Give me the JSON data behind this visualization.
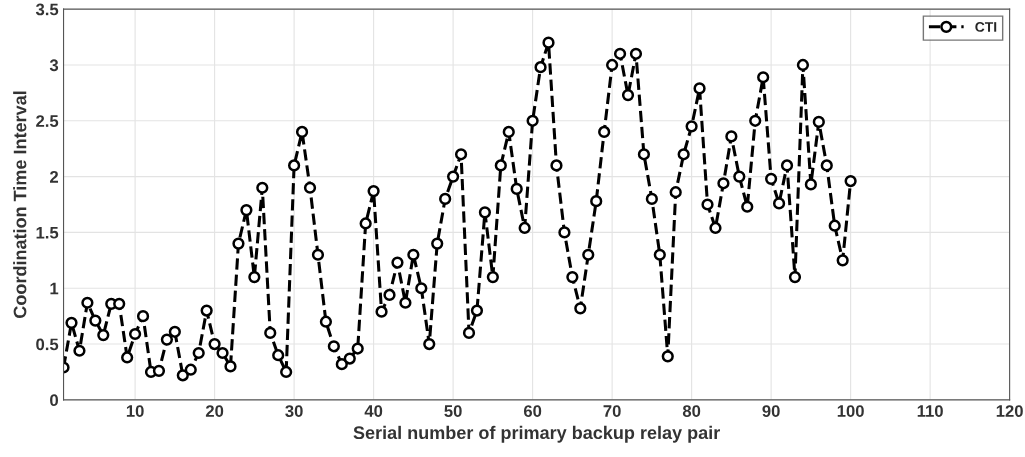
{
  "chart_data": {
    "type": "line",
    "xlabel": "Serial number of primary backup relay pair",
    "ylabel": "Coordination Time Interval",
    "x": [
      1,
      2,
      3,
      4,
      5,
      6,
      7,
      8,
      9,
      10,
      11,
      12,
      13,
      14,
      15,
      16,
      17,
      18,
      19,
      20,
      21,
      22,
      23,
      24,
      25,
      26,
      27,
      28,
      29,
      30,
      31,
      32,
      33,
      34,
      35,
      36,
      37,
      38,
      39,
      40,
      41,
      42,
      43,
      44,
      45,
      46,
      47,
      48,
      49,
      50,
      51,
      52,
      53,
      54,
      55,
      56,
      57,
      58,
      59,
      60,
      61,
      62,
      63,
      64,
      65,
      66,
      67,
      68,
      69,
      70,
      71,
      72,
      73,
      74,
      75,
      76,
      77,
      78,
      79,
      80,
      81,
      82,
      83,
      84,
      85,
      86,
      87,
      88,
      89,
      90,
      91,
      92,
      93,
      94,
      95,
      96,
      97,
      98,
      99,
      100
    ],
    "series": [
      {
        "name": "CTI",
        "color": "#000000",
        "values": [
          0.29,
          0.69,
          0.44,
          0.87,
          0.71,
          0.58,
          0.86,
          0.86,
          0.38,
          0.59,
          0.75,
          0.25,
          0.26,
          0.54,
          0.61,
          0.22,
          0.27,
          0.42,
          0.8,
          0.5,
          0.42,
          0.3,
          1.4,
          1.7,
          1.1,
          1.9,
          0.6,
          0.4,
          0.25,
          2.1,
          2.4,
          1.9,
          1.3,
          0.7,
          0.48,
          0.32,
          0.37,
          0.46,
          1.58,
          1.87,
          0.79,
          0.94,
          1.23,
          0.87,
          1.3,
          1.0,
          0.5,
          1.4,
          1.8,
          2.0,
          2.2,
          0.6,
          0.8,
          1.68,
          1.1,
          2.1,
          2.4,
          1.89,
          1.54,
          2.5,
          2.98,
          3.2,
          2.1,
          1.5,
          1.1,
          0.82,
          1.3,
          1.78,
          2.4,
          3.0,
          3.1,
          2.73,
          3.1,
          2.2,
          1.8,
          1.3,
          0.39,
          1.86,
          2.2,
          2.45,
          2.79,
          1.75,
          1.54,
          1.94,
          2.36,
          2.0,
          1.73,
          2.5,
          2.89,
          1.98,
          1.76,
          2.1,
          1.1,
          3.0,
          1.93,
          2.49,
          2.1,
          1.56,
          1.25,
          1.96
        ]
      }
    ],
    "xlim": [
      1,
      120
    ],
    "xticks": [
      10,
      20,
      30,
      40,
      50,
      60,
      70,
      80,
      90,
      100,
      110,
      120
    ],
    "ylim": [
      0,
      3.5
    ],
    "yticks": [
      0,
      {
        "value": 0.5,
        "label": "0.5"
      },
      1,
      {
        "value": 1.5,
        "label": "1.5"
      },
      2,
      {
        "value": 2.5,
        "label": "2.5"
      },
      3,
      {
        "value": 3.5,
        "label": "3.5"
      }
    ],
    "grid": true,
    "legend": "top right",
    "marker": "circle",
    "line_style": "dashed"
  }
}
